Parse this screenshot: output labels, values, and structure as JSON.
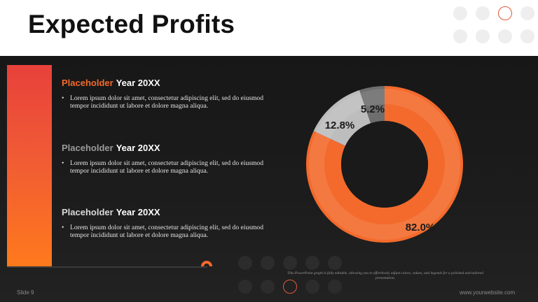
{
  "slide": {
    "title": "Expected Profits",
    "slide_number": "Slide 9",
    "website": "www.yourwebsite.com",
    "note": "This PowerPoint graph is fully editable, allowing you to effortlessly adjust colors, values, and legends for a polished and tailored presentation."
  },
  "colors": {
    "accent": "#f36a2c",
    "accent_red": "#e8413b",
    "light_gray": "#bdbdbd",
    "dark_gray": "#6e6e6e"
  },
  "sections": [
    {
      "title_highlight": "Placeholder",
      "title_rest": "Year 20XX",
      "highlight_color": "#f36a2c",
      "bullet": "•",
      "text": "Lorem ipsum dolor sit amet, consectetur adipiscing elit, sed do eiusmod tempor incididunt ut labore et dolore magna aliqua."
    },
    {
      "title_highlight": "Placeholder",
      "title_rest": "Year 20XX",
      "highlight_color": "#9a9a9a",
      "bullet": "•",
      "text": "Lorem ipsum dolor sit amet, consectetur adipiscing elit, sed do eiusmod tempor incididunt ut labore et dolore magna aliqua."
    },
    {
      "title_highlight": "Placeholder",
      "title_rest": "Year 20XX",
      "highlight_color": "#d9d9d9",
      "bullet": "•",
      "text": "Lorem ipsum dolor sit amet, consectetur adipiscing elit, sed do eiusmod tempor incididunt ut labore et dolore magna aliqua."
    }
  ],
  "chart_data": {
    "type": "pie",
    "donut": true,
    "title": "",
    "categories": [
      "",
      "",
      ""
    ],
    "values": [
      82.0,
      12.8,
      5.2
    ],
    "labels": [
      "82.0%",
      "12.8%",
      "5.2%"
    ],
    "colors": [
      "#f36a2c",
      "#bdbdbd",
      "#6e6e6e"
    ],
    "legend": "none"
  }
}
